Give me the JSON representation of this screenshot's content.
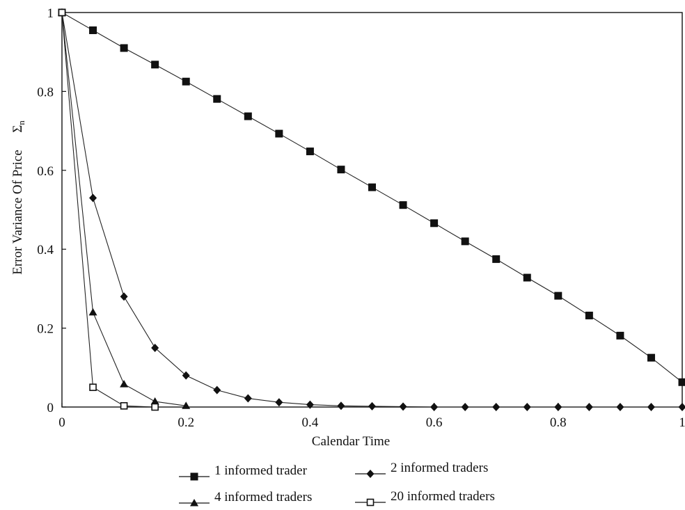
{
  "chart_data": {
    "type": "line",
    "xlabel": "Calendar Time",
    "ylabel": "Error Variance Of Price",
    "ylabel_symbol": "Σ",
    "ylabel_symbol_sub": "n",
    "xlim": [
      0,
      1
    ],
    "ylim": [
      0,
      1
    ],
    "grid": false,
    "legend_position": "bottom",
    "x_ticks": [
      0,
      0.2,
      0.4,
      0.6,
      0.8,
      1
    ],
    "x_tick_labels": [
      "0",
      "0.2",
      "0.4",
      "0.6",
      "0.8",
      "1"
    ],
    "y_ticks": [
      0,
      0.2,
      0.4,
      0.6,
      0.8,
      1
    ],
    "y_tick_labels": [
      "0",
      "0.2",
      "0.4",
      "0.6",
      "0.8",
      "1"
    ],
    "series": [
      {
        "name": "1 informed trader",
        "marker": "filled-square",
        "x": [
          0,
          0.05,
          0.1,
          0.15,
          0.2,
          0.25,
          0.3,
          0.35,
          0.4,
          0.45,
          0.5,
          0.55,
          0.6,
          0.65,
          0.7,
          0.75,
          0.8,
          0.85,
          0.9,
          0.95,
          1
        ],
        "y": [
          1,
          0.955,
          0.91,
          0.868,
          0.825,
          0.781,
          0.737,
          0.693,
          0.648,
          0.602,
          0.557,
          0.512,
          0.466,
          0.42,
          0.375,
          0.328,
          0.282,
          0.232,
          0.181,
          0.125,
          0.063
        ]
      },
      {
        "name": "2 informed traders",
        "marker": "filled-diamond",
        "x": [
          0,
          0.05,
          0.1,
          0.15,
          0.2,
          0.25,
          0.3,
          0.35,
          0.4,
          0.45,
          0.5,
          0.55,
          0.6,
          0.65,
          0.7,
          0.75,
          0.8,
          0.85,
          0.9,
          0.95,
          1
        ],
        "y": [
          1,
          0.53,
          0.28,
          0.15,
          0.08,
          0.043,
          0.022,
          0.012,
          0.006,
          0.003,
          0.002,
          0.001,
          0,
          0,
          0,
          0,
          0,
          0,
          0,
          0,
          0
        ]
      },
      {
        "name": "4 informed traders",
        "marker": "filled-triangle",
        "x": [
          0,
          0.05,
          0.1,
          0.15,
          0.2
        ],
        "y": [
          1,
          0.24,
          0.058,
          0.014,
          0.003
        ]
      },
      {
        "name": "20 informed traders",
        "marker": "open-square",
        "x": [
          0,
          0.05,
          0.1,
          0.15
        ],
        "y": [
          1,
          0.05,
          0.003,
          0
        ]
      }
    ]
  }
}
